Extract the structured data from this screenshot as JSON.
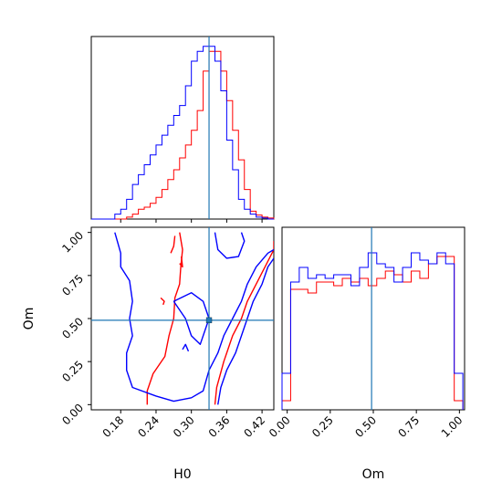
{
  "chart_data": {
    "type": "corner",
    "parameters": [
      "H0",
      "Om"
    ],
    "truths": {
      "H0": 0.33,
      "Om": 0.49
    },
    "colors": {
      "series_a": "#ff0000",
      "series_b": "#0000ff",
      "truth": "#1f77b4"
    },
    "xlabel_h0": "H0",
    "xlabel_om": "Om",
    "ylabel_om": "Om",
    "h0_ticks": [
      "0.18",
      "0.24",
      "0.30",
      "0.36",
      "0.42"
    ],
    "om_ticks": [
      "0.00",
      "0.25",
      "0.50",
      "0.75",
      "1.00"
    ],
    "h0_range": [
      0.13,
      0.44
    ],
    "om_range": [
      -0.03,
      1.03
    ],
    "h0_hist": {
      "edges": [
        0.13,
        0.14,
        0.15,
        0.16,
        0.17,
        0.18,
        0.19,
        0.2,
        0.21,
        0.22,
        0.23,
        0.24,
        0.25,
        0.26,
        0.27,
        0.28,
        0.29,
        0.3,
        0.31,
        0.32,
        0.33,
        0.34,
        0.35,
        0.36,
        0.37,
        0.38,
        0.39,
        0.4,
        0.41,
        0.42,
        0.43,
        0.44
      ],
      "ymax": 0.185,
      "series": [
        {
          "color": "red",
          "counts": [
            0,
            0,
            0,
            0,
            0,
            0,
            0.002,
            0.005,
            0.01,
            0.012,
            0.016,
            0.022,
            0.03,
            0.04,
            0.05,
            0.062,
            0.075,
            0.09,
            0.11,
            0.15,
            0.17,
            0.17,
            0.15,
            0.12,
            0.09,
            0.06,
            0.03,
            0.008,
            0.004,
            0.002,
            0.001
          ]
        },
        {
          "color": "blue",
          "counts": [
            0,
            0,
            0,
            0,
            0.005,
            0.01,
            0.02,
            0.035,
            0.045,
            0.055,
            0.065,
            0.075,
            0.085,
            0.095,
            0.105,
            0.115,
            0.135,
            0.16,
            0.17,
            0.175,
            0.175,
            0.16,
            0.13,
            0.08,
            0.05,
            0.02,
            0.01,
            0.005,
            0.002,
            0.001,
            0
          ]
        }
      ]
    },
    "om_hist": {
      "edges": [
        -0.03,
        0.02,
        0.07,
        0.12,
        0.17,
        0.22,
        0.27,
        0.32,
        0.37,
        0.42,
        0.47,
        0.52,
        0.57,
        0.62,
        0.67,
        0.72,
        0.77,
        0.82,
        0.87,
        0.92,
        0.97,
        1.02
      ],
      "ymax": 1.0,
      "series": [
        {
          "color": "red",
          "counts": [
            0.05,
            0.66,
            0.66,
            0.64,
            0.7,
            0.7,
            0.68,
            0.72,
            0.7,
            0.72,
            0.68,
            0.72,
            0.76,
            0.74,
            0.7,
            0.76,
            0.72,
            0.8,
            0.84,
            0.84,
            0.05
          ]
        },
        {
          "color": "blue",
          "counts": [
            0.2,
            0.7,
            0.78,
            0.72,
            0.74,
            0.72,
            0.74,
            0.74,
            0.68,
            0.78,
            0.86,
            0.8,
            0.78,
            0.7,
            0.78,
            0.86,
            0.82,
            0.8,
            0.86,
            0.8,
            0.2
          ]
        }
      ]
    },
    "contours": {
      "series": [
        {
          "color": "red",
          "paths": [
            [
              [
                0.225,
                0.0
              ],
              [
                0.225,
                0.08
              ],
              [
                0.235,
                0.18
              ],
              [
                0.255,
                0.28
              ],
              [
                0.262,
                0.4
              ],
              [
                0.27,
                0.5
              ],
              [
                0.272,
                0.62
              ],
              [
                0.28,
                0.7
              ],
              [
                0.282,
                0.8
              ],
              [
                0.285,
                0.9
              ],
              [
                0.28,
                1.0
              ]
            ],
            [
              [
                0.34,
                0.0
              ],
              [
                0.343,
                0.1
              ],
              [
                0.355,
                0.25
              ],
              [
                0.36,
                0.3
              ],
              [
                0.37,
                0.4
              ],
              [
                0.385,
                0.5
              ],
              [
                0.395,
                0.6
              ],
              [
                0.41,
                0.7
              ],
              [
                0.425,
                0.8
              ],
              [
                0.44,
                0.9
              ],
              [
                0.44,
                0.95
              ]
            ],
            [
              [
                0.265,
                0.88
              ],
              [
                0.27,
                0.92
              ],
              [
                0.272,
                0.98
              ]
            ],
            [
              [
                0.248,
                0.62
              ],
              [
                0.254,
                0.6
              ],
              [
                0.252,
                0.58
              ]
            ],
            [
              [
                0.28,
                0.82
              ],
              [
                0.285,
                0.8
              ],
              [
                0.283,
                0.86
              ]
            ]
          ]
        },
        {
          "color": "blue",
          "paths": [
            [
              [
                0.17,
                1.0
              ],
              [
                0.18,
                0.88
              ],
              [
                0.18,
                0.8
              ],
              [
                0.195,
                0.72
              ],
              [
                0.2,
                0.6
              ],
              [
                0.195,
                0.5
              ],
              [
                0.2,
                0.4
              ],
              [
                0.19,
                0.3
              ],
              [
                0.19,
                0.2
              ],
              [
                0.2,
                0.1
              ],
              [
                0.24,
                0.05
              ],
              [
                0.27,
                0.02
              ],
              [
                0.3,
                0.04
              ],
              [
                0.32,
                0.08
              ],
              [
                0.33,
                0.2
              ],
              [
                0.345,
                0.3
              ],
              [
                0.355,
                0.4
              ],
              [
                0.37,
                0.5
              ],
              [
                0.385,
                0.6
              ],
              [
                0.395,
                0.7
              ],
              [
                0.41,
                0.8
              ],
              [
                0.43,
                0.88
              ],
              [
                0.44,
                0.9
              ]
            ],
            [
              [
                0.345,
                0.0
              ],
              [
                0.35,
                0.1
              ],
              [
                0.36,
                0.2
              ],
              [
                0.375,
                0.3
              ],
              [
                0.385,
                0.4
              ],
              [
                0.395,
                0.5
              ],
              [
                0.405,
                0.6
              ],
              [
                0.42,
                0.7
              ],
              [
                0.43,
                0.8
              ],
              [
                0.44,
                0.85
              ]
            ],
            [
              [
                0.27,
                0.6
              ],
              [
                0.3,
                0.65
              ],
              [
                0.32,
                0.6
              ],
              [
                0.33,
                0.5
              ],
              [
                0.315,
                0.35
              ],
              [
                0.3,
                0.4
              ],
              [
                0.29,
                0.5
              ],
              [
                0.27,
                0.6
              ]
            ],
            [
              [
                0.285,
                0.32
              ],
              [
                0.29,
                0.35
              ],
              [
                0.295,
                0.31
              ]
            ],
            [
              [
                0.34,
                1.0
              ],
              [
                0.345,
                0.9
              ],
              [
                0.36,
                0.85
              ],
              [
                0.38,
                0.86
              ],
              [
                0.39,
                0.95
              ],
              [
                0.385,
                1.0
              ]
            ]
          ]
        }
      ]
    }
  }
}
